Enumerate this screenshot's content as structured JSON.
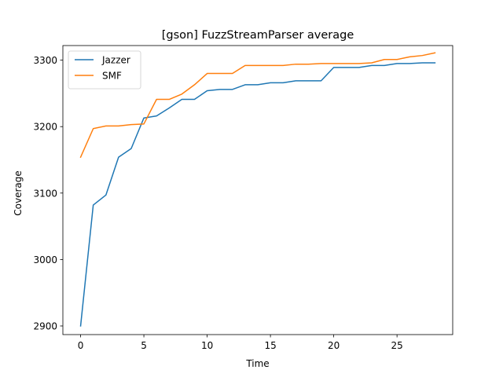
{
  "chart_data": {
    "type": "line",
    "title": "[gson] FuzzStreamParser average",
    "xlabel": "Time",
    "ylabel": "Coverage",
    "xlim": [
      -1.4,
      29.4
    ],
    "ylim": [
      2887,
      3322
    ],
    "xticks": [
      0,
      5,
      10,
      15,
      20,
      25
    ],
    "yticks": [
      2900,
      3000,
      3100,
      3200,
      3300
    ],
    "grid": false,
    "legend": "top-left",
    "x": [
      0,
      1,
      2,
      3,
      4,
      5,
      6,
      7,
      8,
      9,
      10,
      11,
      12,
      13,
      14,
      15,
      16,
      17,
      18,
      19,
      20,
      21,
      22,
      23,
      24,
      25,
      26,
      27,
      28
    ],
    "series": [
      {
        "name": "Jazzer",
        "color": "#1f77b4",
        "values": [
          2900,
          3082,
          3097,
          3154,
          3167,
          3213,
          3216,
          3228,
          3241,
          3241,
          3254,
          3256,
          3256,
          3263,
          3263,
          3266,
          3266,
          3269,
          3269,
          3269,
          3289,
          3289,
          3289,
          3292,
          3292,
          3295,
          3295,
          3296,
          3296
        ]
      },
      {
        "name": "SMF",
        "color": "#ff7f0e",
        "values": [
          3154,
          3197,
          3201,
          3201,
          3203,
          3204,
          3241,
          3241,
          3249,
          3263,
          3280,
          3280,
          3280,
          3292,
          3292,
          3292,
          3292,
          3294,
          3294,
          3295,
          3295,
          3295,
          3295,
          3296,
          3301,
          3301,
          3305,
          3307,
          3311
        ]
      }
    ]
  }
}
